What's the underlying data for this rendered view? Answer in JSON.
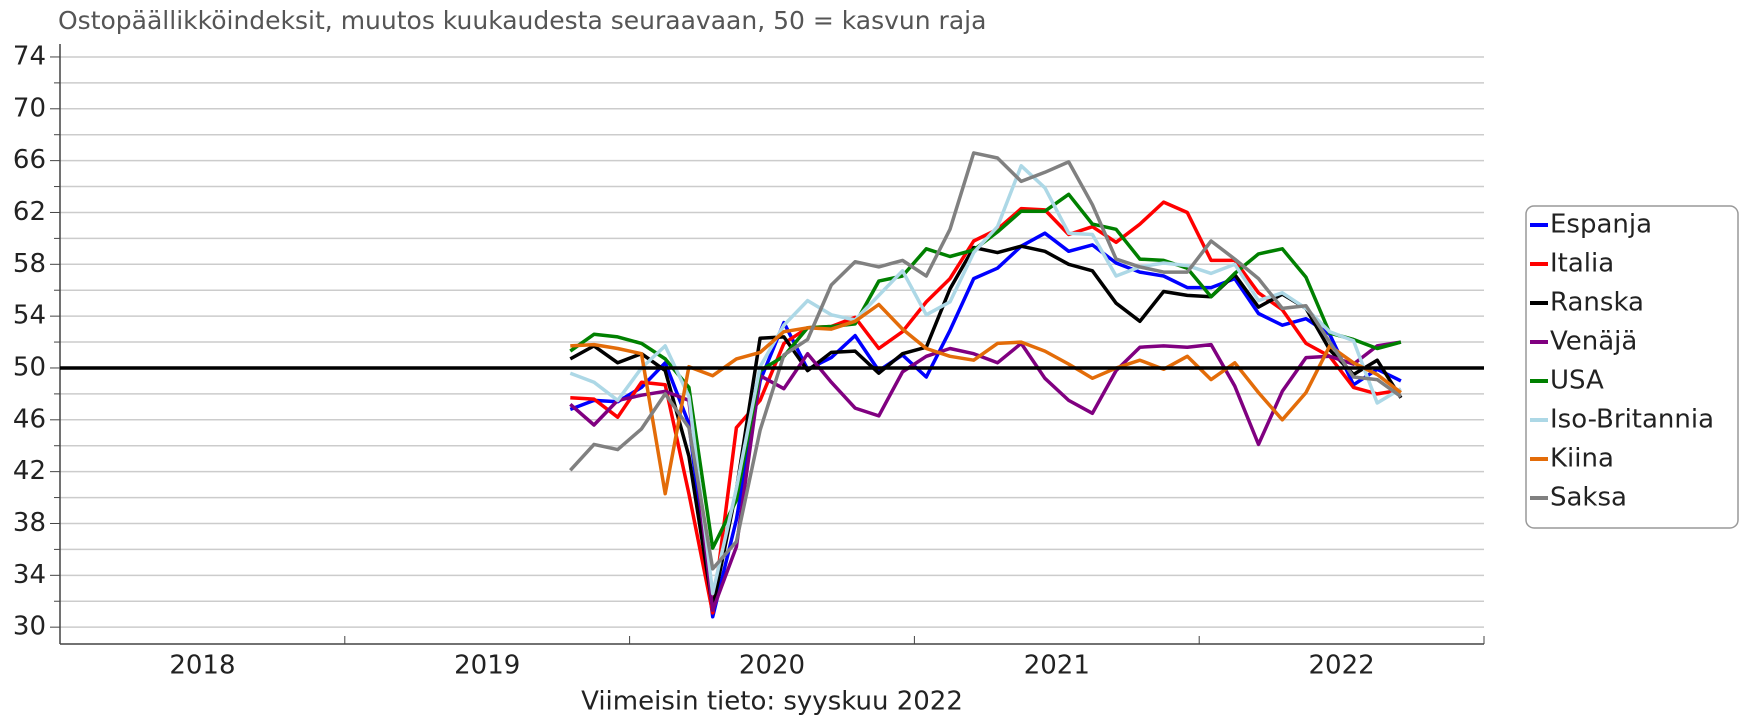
{
  "chart_data": {
    "type": "line",
    "title": "Ostopäällikköindeksit, muutos kuukaudesta seuraavaan, 50 = kasvun raja",
    "x_label": "Viimeisin tieto: syyskuu 2022",
    "xlim": [
      2018,
      2023
    ],
    "xticks": [
      {
        "value": 2018.5,
        "label": "2018"
      },
      {
        "value": 2019.5,
        "label": "2019"
      },
      {
        "value": 2020.5,
        "label": "2020"
      },
      {
        "value": 2021.5,
        "label": "2021"
      },
      {
        "value": 2022.5,
        "label": "2022"
      }
    ],
    "x_minor_ticks": [
      2018,
      2019,
      2020,
      2021,
      2022,
      2023
    ],
    "ylim": [
      28.7,
      75
    ],
    "yticks": [
      30,
      34,
      38,
      42,
      46,
      50,
      54,
      58,
      62,
      66,
      70,
      74
    ],
    "y_minor_ticks": [
      32,
      36,
      40,
      44,
      48,
      52,
      56,
      60,
      64,
      68,
      72
    ],
    "grid": true,
    "reference_line": 50,
    "legend": "right",
    "x": [
      2019.7917,
      2019.875,
      2019.9583,
      2020.0417,
      2020.125,
      2020.2083,
      2020.2917,
      2020.375,
      2020.4583,
      2020.5417,
      2020.625,
      2020.7083,
      2020.7917,
      2020.875,
      2020.9583,
      2021.0417,
      2021.125,
      2021.2083,
      2021.2917,
      2021.375,
      2021.4583,
      2021.5417,
      2021.625,
      2021.7083,
      2021.7917,
      2021.875,
      2021.9583,
      2022.0417,
      2022.125,
      2022.2083,
      2022.2917,
      2022.375,
      2022.4583,
      2022.5417,
      2022.625,
      2022.7083
    ],
    "series": [
      {
        "name": "Espanja",
        "color": "#0000ff",
        "values": [
          46.8,
          47.5,
          47.4,
          48.5,
          50.4,
          45.7,
          30.8,
          38.3,
          49.0,
          53.5,
          49.9,
          50.8,
          52.5,
          49.8,
          51.0,
          49.3,
          52.9,
          56.9,
          57.7,
          59.4,
          60.4,
          59.0,
          59.5,
          58.1,
          57.4,
          57.1,
          56.2,
          56.2,
          56.9,
          54.2,
          53.3,
          53.8,
          52.6,
          48.7,
          49.9,
          49.0
        ]
      },
      {
        "name": "Italia",
        "color": "#ff0000",
        "values": [
          47.7,
          47.6,
          46.2,
          48.9,
          48.7,
          40.3,
          31.1,
          45.4,
          47.5,
          51.9,
          53.1,
          53.2,
          53.9,
          51.5,
          52.8,
          55.1,
          56.9,
          59.8,
          60.7,
          62.3,
          62.2,
          60.3,
          60.9,
          59.7,
          61.1,
          62.8,
          62.0,
          58.3,
          58.3,
          55.8,
          54.5,
          51.9,
          50.9,
          48.5,
          48.0,
          48.3
        ]
      },
      {
        "name": "Ranska",
        "color": "#000000",
        "values": [
          50.7,
          51.7,
          50.4,
          51.1,
          49.8,
          43.2,
          31.5,
          40.6,
          52.3,
          52.4,
          49.8,
          51.2,
          51.3,
          49.6,
          51.1,
          51.6,
          56.1,
          59.3,
          58.9,
          59.4,
          59.0,
          58.0,
          57.5,
          55.0,
          53.6,
          55.9,
          55.6,
          55.5,
          57.2,
          54.7,
          55.7,
          54.6,
          51.4,
          49.5,
          50.6,
          47.7
        ]
      },
      {
        "name": "Venäjä",
        "color": "#800080",
        "values": [
          47.2,
          45.6,
          47.5,
          47.9,
          48.2,
          47.5,
          31.3,
          36.2,
          49.4,
          48.4,
          51.1,
          48.9,
          46.9,
          46.3,
          49.7,
          50.9,
          51.5,
          51.1,
          50.4,
          51.9,
          49.2,
          47.5,
          46.5,
          49.8,
          51.6,
          51.7,
          51.6,
          51.8,
          48.6,
          44.1,
          48.2,
          50.8,
          50.9,
          50.3,
          51.7,
          52.0
        ]
      },
      {
        "name": "USA",
        "color": "#008000",
        "values": [
          51.3,
          52.6,
          52.4,
          51.9,
          50.7,
          48.5,
          36.1,
          39.8,
          49.8,
          50.9,
          53.1,
          53.2,
          53.4,
          56.7,
          57.1,
          59.2,
          58.6,
          59.1,
          60.5,
          62.1,
          62.1,
          63.4,
          61.1,
          60.7,
          58.4,
          58.3,
          57.7,
          55.5,
          57.3,
          58.8,
          59.2,
          57.0,
          52.7,
          52.2,
          51.5,
          52.0
        ]
      },
      {
        "name": "Iso-Britannia",
        "color": "#add8e6",
        "values": [
          49.6,
          48.9,
          47.5,
          50.0,
          51.7,
          47.8,
          32.6,
          40.7,
          50.1,
          53.3,
          55.2,
          54.1,
          53.7,
          55.6,
          57.5,
          54.1,
          55.1,
          58.9,
          60.9,
          65.6,
          63.9,
          60.4,
          60.3,
          57.1,
          57.8,
          58.1,
          57.9,
          57.3,
          58.0,
          55.2,
          55.8,
          54.6,
          52.8,
          52.1,
          47.3,
          48.4
        ]
      },
      {
        "name": "Kiina",
        "color": "#e36c09",
        "values": [
          51.7,
          51.8,
          51.5,
          51.1,
          40.3,
          50.1,
          49.4,
          50.7,
          51.2,
          52.8,
          53.1,
          53.0,
          53.6,
          54.9,
          53.0,
          51.5,
          50.9,
          50.6,
          51.9,
          52.0,
          51.3,
          50.3,
          49.2,
          50.0,
          50.6,
          49.9,
          50.9,
          49.1,
          50.4,
          48.1,
          46.0,
          48.1,
          51.7,
          50.4,
          49.5,
          48.1
        ]
      },
      {
        "name": "Saksa",
        "color": "#808080",
        "values": [
          42.1,
          44.1,
          43.7,
          45.3,
          48.0,
          45.4,
          34.5,
          36.6,
          45.2,
          51.0,
          52.2,
          56.4,
          58.2,
          57.8,
          58.3,
          57.1,
          60.7,
          66.6,
          66.2,
          64.4,
          65.1,
          65.9,
          62.6,
          58.4,
          57.8,
          57.4,
          57.4,
          59.8,
          58.4,
          56.9,
          54.6,
          54.8,
          52.0,
          49.3,
          49.1,
          47.8
        ]
      }
    ]
  }
}
